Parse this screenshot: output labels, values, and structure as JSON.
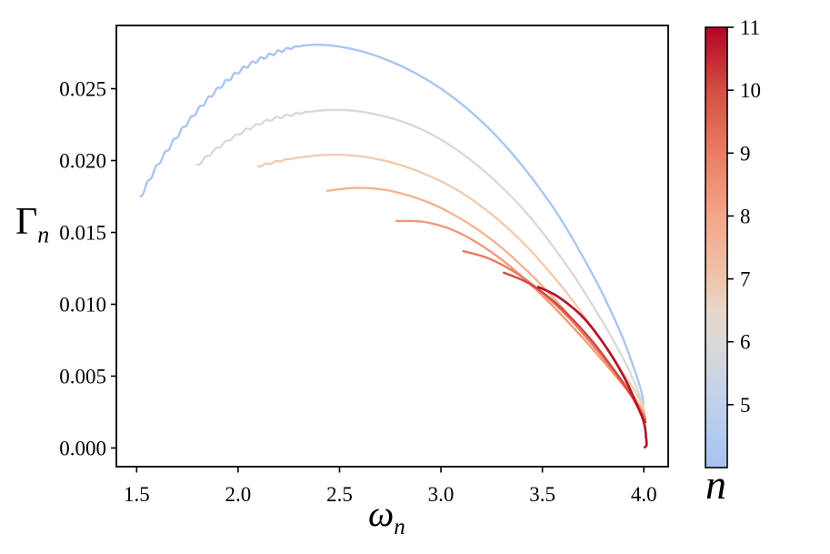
{
  "figure": {
    "background": "#ffffff",
    "axis_color": "#000000",
    "text_color": "#000000"
  },
  "chart_data": {
    "type": "line",
    "title": "",
    "xlabel": "ω_n",
    "xlabel_main": "ω",
    "xlabel_sub": "n",
    "ylabel": "Γ_n",
    "ylabel_main": "Γ",
    "ylabel_sub": "n",
    "xlim": [
      1.4,
      4.12
    ],
    "ylim": [
      -0.0013,
      0.0294
    ],
    "xticks": [
      1.5,
      2.0,
      2.5,
      3.0,
      3.5,
      4.0
    ],
    "xtick_labels": [
      "1.5",
      "2.0",
      "2.5",
      "3.0",
      "3.5",
      "4.0"
    ],
    "yticks": [
      0.0,
      0.005,
      0.01,
      0.015,
      0.02,
      0.025
    ],
    "ytick_labels": [
      "0.000",
      "0.005",
      "0.010",
      "0.015",
      "0.020",
      "0.025"
    ],
    "grid": false,
    "legend_position": "colorbar-right",
    "series": [
      {
        "name": "n=4",
        "n": 4,
        "color": "#aac6f1",
        "linewidth": 2.4,
        "wiggle": {
          "amp": 2.0,
          "wavelength": 0.043,
          "until": 2.33
        },
        "points": [
          [
            1.52,
            0.0175
          ],
          [
            1.6,
            0.0196
          ],
          [
            1.7,
            0.0217
          ],
          [
            1.82,
            0.0238
          ],
          [
            1.95,
            0.0256
          ],
          [
            2.1,
            0.027
          ],
          [
            2.32,
            0.028
          ],
          [
            2.55,
            0.0278
          ],
          [
            2.8,
            0.0266
          ],
          [
            3.05,
            0.0245
          ],
          [
            3.3,
            0.0213
          ],
          [
            3.55,
            0.0168
          ],
          [
            3.75,
            0.012
          ],
          [
            3.88,
            0.0082
          ],
          [
            3.95,
            0.0056
          ],
          [
            3.99,
            0.0038
          ],
          [
            3.998,
            0.003
          ]
        ]
      },
      {
        "name": "n=5",
        "n": 5,
        "color": "#dbd9d6",
        "linewidth": 2.4,
        "wiggle": {
          "amp": 1.4,
          "wavelength": 0.05,
          "until": 2.38
        },
        "points": [
          [
            1.8,
            0.0197
          ],
          [
            1.92,
            0.0211
          ],
          [
            2.05,
            0.0222
          ],
          [
            2.2,
            0.023
          ],
          [
            2.43,
            0.0235
          ],
          [
            2.65,
            0.0233
          ],
          [
            2.9,
            0.0222
          ],
          [
            3.15,
            0.02
          ],
          [
            3.4,
            0.0167
          ],
          [
            3.62,
            0.0127
          ],
          [
            3.8,
            0.0087
          ],
          [
            3.91,
            0.0059
          ],
          [
            3.97,
            0.004
          ],
          [
            4.0,
            0.0028
          ]
        ]
      },
      {
        "name": "n=6",
        "n": 6,
        "color": "#f3ccb1",
        "linewidth": 2.4,
        "wiggle": {
          "amp": 0.8,
          "wavelength": 0.05,
          "until": 2.33
        },
        "points": [
          [
            2.1,
            0.0196
          ],
          [
            2.25,
            0.0201
          ],
          [
            2.45,
            0.0204
          ],
          [
            2.65,
            0.0202
          ],
          [
            2.88,
            0.0193
          ],
          [
            3.12,
            0.0176
          ],
          [
            3.36,
            0.0149
          ],
          [
            3.58,
            0.0115
          ],
          [
            3.77,
            0.0079
          ],
          [
            3.9,
            0.0052
          ],
          [
            3.97,
            0.0036
          ],
          [
            4.002,
            0.0026
          ]
        ]
      },
      {
        "name": "n=7",
        "n": 7,
        "color": "#f5b394",
        "linewidth": 2.4,
        "points": [
          [
            2.44,
            0.0179
          ],
          [
            2.6,
            0.0181
          ],
          [
            2.78,
            0.0178
          ],
          [
            3.0,
            0.0167
          ],
          [
            3.24,
            0.0146
          ],
          [
            3.47,
            0.0117
          ],
          [
            3.67,
            0.0086
          ],
          [
            3.83,
            0.0058
          ],
          [
            3.93,
            0.004
          ],
          [
            4.004,
            0.0024
          ]
        ]
      },
      {
        "name": "n=8",
        "n": 8,
        "color": "#f29a79",
        "linewidth": 2.4,
        "points": [
          [
            2.78,
            0.0158
          ],
          [
            2.93,
            0.0157
          ],
          [
            3.1,
            0.0149
          ],
          [
            3.3,
            0.0131
          ],
          [
            3.5,
            0.0106
          ],
          [
            3.69,
            0.0078
          ],
          [
            3.85,
            0.0052
          ],
          [
            3.94,
            0.0036
          ],
          [
            4.006,
            0.0022
          ]
        ]
      },
      {
        "name": "n=9",
        "n": 9,
        "color": "#e87a5d",
        "linewidth": 2.4,
        "points": [
          [
            3.11,
            0.0137
          ],
          [
            3.25,
            0.0131
          ],
          [
            3.42,
            0.0117
          ],
          [
            3.6,
            0.0095
          ],
          [
            3.77,
            0.0068
          ],
          [
            3.89,
            0.0046
          ],
          [
            3.96,
            0.0032
          ],
          [
            4.008,
            0.002
          ]
        ]
      },
      {
        "name": "n=10",
        "n": 10,
        "color": "#cf4c40",
        "linewidth": 2.4,
        "points": [
          [
            3.31,
            0.0122
          ],
          [
            3.44,
            0.0114
          ],
          [
            3.58,
            0.0099
          ],
          [
            3.73,
            0.0077
          ],
          [
            3.86,
            0.0053
          ],
          [
            3.94,
            0.0036
          ],
          [
            4.009,
            0.0018
          ]
        ]
      },
      {
        "name": "n=11",
        "n": 11,
        "color": "#b3152b",
        "linewidth": 2.7,
        "points": [
          [
            3.48,
            0.0112
          ],
          [
            3.58,
            0.0105
          ],
          [
            3.7,
            0.0091
          ],
          [
            3.81,
            0.0071
          ],
          [
            3.9,
            0.005
          ],
          [
            3.96,
            0.0032
          ],
          [
            4.0,
            0.0018
          ],
          [
            4.012,
            0.0006
          ],
          [
            4.013,
            0.0002
          ],
          [
            4.005,
            5e-05
          ]
        ]
      }
    ],
    "colorbar": {
      "label": "n",
      "colormap": "coolwarm",
      "range": [
        4,
        11
      ],
      "ticks": [
        5,
        6,
        7,
        8,
        9,
        10,
        11
      ],
      "tick_labels": [
        "5",
        "6",
        "7",
        "8",
        "9",
        "10",
        "11"
      ],
      "gradient_stops": [
        {
          "value": 4.0,
          "color": "#a6c3f1"
        },
        {
          "value": 5.0,
          "color": "#c0d0ec"
        },
        {
          "value": 6.0,
          "color": "#dcd9d7"
        },
        {
          "value": 6.5,
          "color": "#e7d7cb"
        },
        {
          "value": 7.0,
          "color": "#efc5ab"
        },
        {
          "value": 8.0,
          "color": "#f3a58a"
        },
        {
          "value": 9.0,
          "color": "#e97d62"
        },
        {
          "value": 10.0,
          "color": "#d34f43"
        },
        {
          "value": 11.0,
          "color": "#b40426"
        }
      ]
    }
  }
}
